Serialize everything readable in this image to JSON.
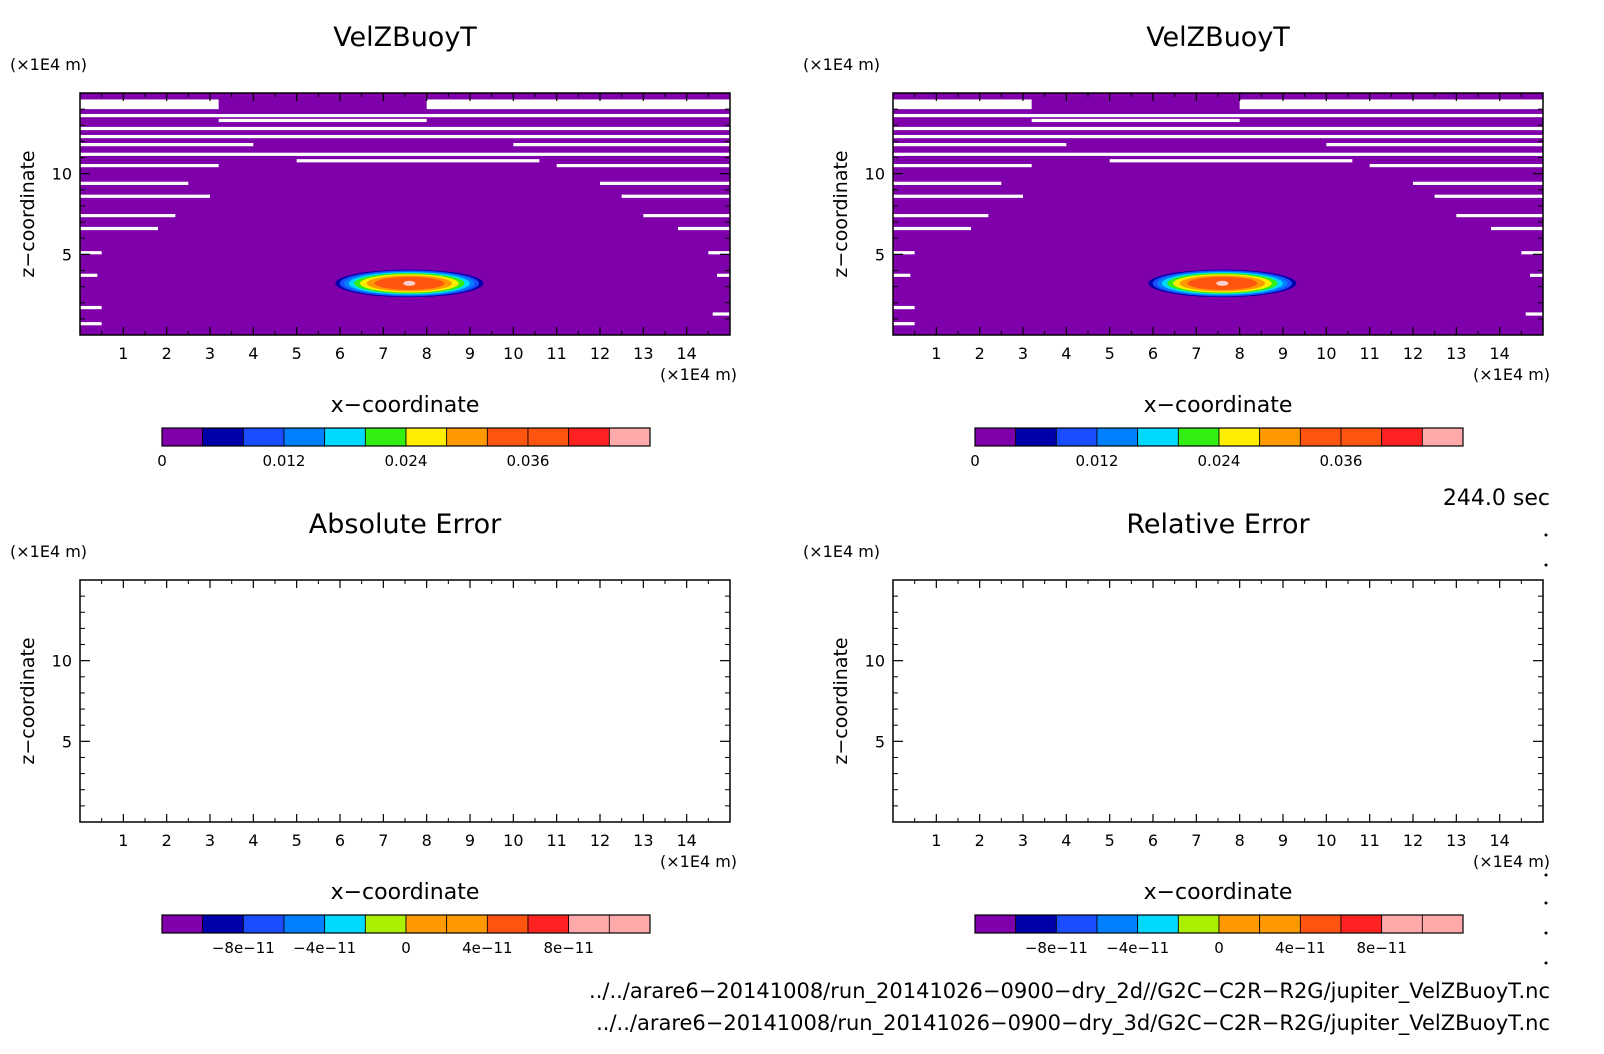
{
  "colors": {
    "purple": "#7f00aa",
    "navy": "#0000aa",
    "blue": "#1a4dff",
    "azure": "#0080ff",
    "cyan": "#00d9ff",
    "green": "#33ee11",
    "yellow": "#ffee00",
    "yellowgreen": "#aaee00",
    "orange": "#ff9900",
    "redorange": "#ff5511",
    "red": "#ff2222",
    "pink": "#ffaaaa"
  },
  "chart_data": [
    {
      "type": "heatmap",
      "title": "VelZBuoyT",
      "xlabel": "x−coordinate",
      "ylabel": "z−coordinate",
      "x_unit": "(×1E4 m)",
      "y_unit": "(×1E4 m)",
      "xlim": [
        0,
        15
      ],
      "ylim": [
        0,
        15
      ],
      "x_ticks": [
        1,
        2,
        3,
        4,
        5,
        6,
        7,
        8,
        9,
        10,
        11,
        12,
        13,
        14
      ],
      "y_ticks": [
        5,
        10
      ],
      "blob": {
        "cx": 7.6,
        "cz": 3.2,
        "rx": 3.6,
        "rz": 1.8,
        "max": 0.04
      },
      "colorbar": {
        "min": 0,
        "max": 0.048,
        "levels": [
          0,
          0.004,
          0.008,
          0.012,
          0.016,
          0.02,
          0.024,
          0.028,
          0.032,
          0.036,
          0.04,
          0.044
        ],
        "tick_labels": [
          "0",
          "0.012",
          "0.024",
          "0.036"
        ],
        "tick_values": [
          0,
          0.012,
          0.024,
          0.036
        ]
      }
    },
    {
      "type": "heatmap",
      "title": "VelZBuoyT",
      "xlabel": "x−coordinate",
      "ylabel": "z−coordinate",
      "x_unit": "(×1E4 m)",
      "y_unit": "(×1E4 m)",
      "xlim": [
        0,
        15
      ],
      "ylim": [
        0,
        15
      ],
      "x_ticks": [
        1,
        2,
        3,
        4,
        5,
        6,
        7,
        8,
        9,
        10,
        11,
        12,
        13,
        14
      ],
      "y_ticks": [
        5,
        10
      ],
      "blob": {
        "cx": 7.6,
        "cz": 3.2,
        "rx": 3.6,
        "rz": 1.8,
        "max": 0.04
      },
      "colorbar": {
        "min": 0,
        "max": 0.048,
        "levels": [
          0,
          0.004,
          0.008,
          0.012,
          0.016,
          0.02,
          0.024,
          0.028,
          0.032,
          0.036,
          0.04,
          0.044
        ],
        "tick_labels": [
          "0",
          "0.012",
          "0.024",
          "0.036"
        ],
        "tick_values": [
          0,
          0.012,
          0.024,
          0.036
        ]
      }
    },
    {
      "type": "heatmap",
      "title": "Absolute Error",
      "xlabel": "x−coordinate",
      "ylabel": "z−coordinate",
      "x_unit": "(×1E4 m)",
      "y_unit": "(×1E4 m)",
      "xlim": [
        0,
        15
      ],
      "ylim": [
        0,
        15
      ],
      "x_ticks": [
        1,
        2,
        3,
        4,
        5,
        6,
        7,
        8,
        9,
        10,
        11,
        12,
        13,
        14
      ],
      "y_ticks": [
        5,
        10
      ],
      "empty": true,
      "colorbar": {
        "min": -1.2e-10,
        "max": 1.2e-10,
        "levels": [
          -1.2e-10,
          -1e-10,
          -8e-11,
          -6e-11,
          -4e-11,
          -2e-11,
          0,
          2e-11,
          4e-11,
          6e-11,
          8e-11,
          1e-10
        ],
        "tick_labels": [
          "−8e−11",
          "−4e−11",
          "0",
          "4e−11",
          "8e−11"
        ],
        "tick_values": [
          -8e-11,
          -4e-11,
          0,
          4e-11,
          8e-11
        ]
      }
    },
    {
      "type": "heatmap",
      "title": "Relative Error",
      "xlabel": "x−coordinate",
      "ylabel": "z−coordinate",
      "x_unit": "(×1E4 m)",
      "y_unit": "(×1E4 m)",
      "xlim": [
        0,
        15
      ],
      "ylim": [
        0,
        15
      ],
      "x_ticks": [
        1,
        2,
        3,
        4,
        5,
        6,
        7,
        8,
        9,
        10,
        11,
        12,
        13,
        14
      ],
      "y_ticks": [
        5,
        10
      ],
      "empty": true,
      "colorbar": {
        "min": -1.2e-10,
        "max": 1.2e-10,
        "levels": [
          -1.2e-10,
          -1e-10,
          -8e-11,
          -6e-11,
          -4e-11,
          -2e-11,
          0,
          2e-11,
          4e-11,
          6e-11,
          8e-11,
          1e-10
        ],
        "tick_labels": [
          "−8e−11",
          "−4e−11",
          "0",
          "4e−11",
          "8e−11"
        ],
        "tick_values": [
          -8e-11,
          -4e-11,
          0,
          4e-11,
          8e-11
        ]
      }
    }
  ],
  "time_label": "244.0 sec",
  "file_paths": [
    "../../arare6−20141008/run_20141026−0900−dry_2d//G2C−C2R−R2G/jupiter_VelZBuoyT.nc",
    "../../arare6−20141008/run_20141026−0900−dry_3d/G2C−C2R−R2G/jupiter_VelZBuoyT.nc"
  ]
}
